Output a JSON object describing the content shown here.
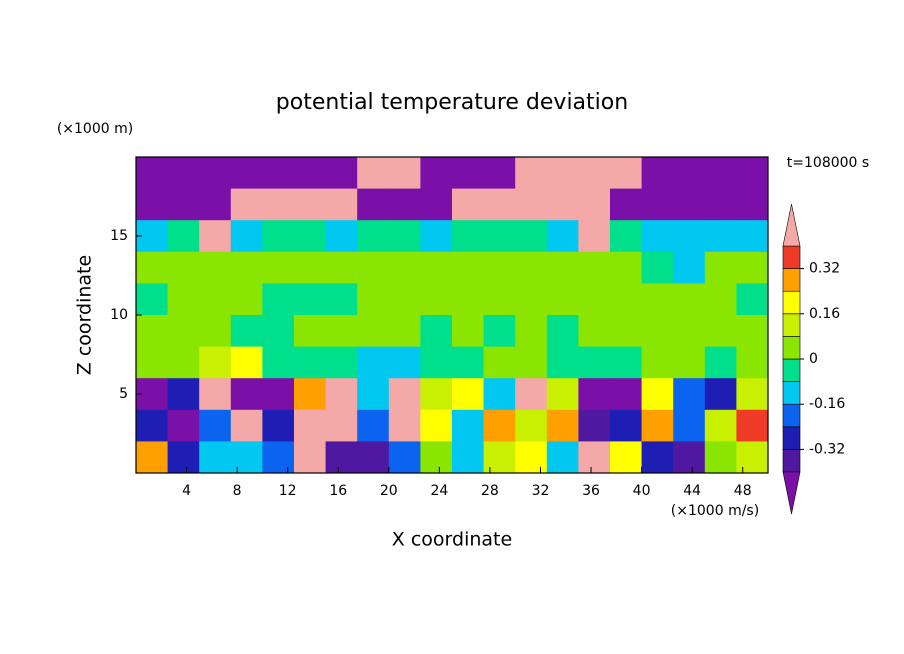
{
  "chart_data": {
    "type": "filled-contour",
    "title": "potential temperature deviation",
    "y_unit": "(×1000 m)",
    "x_unit": "(×1000 m/s)",
    "time_label": "t=108000 s",
    "xlabel": "X coordinate",
    "ylabel": "Z coordinate",
    "xlim": [
      0,
      50
    ],
    "ylim": [
      0,
      20
    ],
    "xticks": [
      4,
      8,
      12,
      16,
      20,
      24,
      28,
      32,
      36,
      40,
      44,
      48
    ],
    "yticks": [
      5,
      10,
      15
    ],
    "levels": [
      -0.4,
      -0.32,
      -0.24,
      -0.16,
      -0.08,
      0,
      0.08,
      0.16,
      0.24,
      0.32,
      0.4
    ],
    "colors": [
      "#7a10a8",
      "#5018a0",
      "#1e1eb4",
      "#0a64f0",
      "#00c8f0",
      "#00e08c",
      "#8ae600",
      "#c8f000",
      "#ffff00",
      "#ffa000",
      "#f03a28",
      "#f4a8a8"
    ],
    "cbarticks": [
      -0.32,
      -0.16,
      0,
      0.16,
      0.32
    ],
    "x": [
      1.25,
      3.75,
      6.25,
      8.75,
      11.25,
      13.75,
      16.25,
      18.75,
      21.25,
      23.75,
      26.25,
      28.75,
      31.25,
      33.75,
      36.25,
      38.75,
      41.25,
      43.75,
      46.25,
      48.75
    ],
    "y": [
      19,
      17,
      15,
      13,
      11,
      9,
      7,
      5,
      3,
      1
    ],
    "z": [
      [
        -0.5,
        -0.5,
        -0.5,
        -0.5,
        -0.5,
        -0.5,
        -0.5,
        0.5,
        0.5,
        -0.5,
        -0.5,
        -0.5,
        0.5,
        0.5,
        0.5,
        0.5,
        -0.5,
        -0.5,
        -0.5,
        -0.5
      ],
      [
        -0.5,
        -0.5,
        -0.5,
        0.5,
        0.5,
        0.5,
        0.5,
        -0.5,
        -0.5,
        -0.5,
        0.5,
        0.5,
        0.5,
        0.5,
        0.5,
        -0.5,
        -0.5,
        -0.5,
        -0.5,
        -0.5
      ],
      [
        -0.1,
        -0.05,
        0.5,
        -0.1,
        -0.05,
        -0.05,
        -0.1,
        -0.05,
        -0.05,
        -0.1,
        -0.05,
        -0.05,
        -0.05,
        -0.1,
        0.5,
        -0.05,
        -0.1,
        -0.1,
        -0.15,
        -0.1
      ],
      [
        0.05,
        0.05,
        0.05,
        0.05,
        0.05,
        0.05,
        0.05,
        0.05,
        0.05,
        0.05,
        0.05,
        0.05,
        0.05,
        0.05,
        0.05,
        0.05,
        -0.03,
        -0.1,
        0.05,
        0.05
      ],
      [
        -0.03,
        0.05,
        0.05,
        0.05,
        -0.03,
        -0.03,
        -0.03,
        0.05,
        0.05,
        0.05,
        0.05,
        0.05,
        0.05,
        0.05,
        0.05,
        0.05,
        0.05,
        0.05,
        0.05,
        -0.03
      ],
      [
        0.05,
        0.05,
        0.05,
        -0.03,
        -0.03,
        0.05,
        0.05,
        0.05,
        0.05,
        -0.03,
        0.05,
        -0.03,
        0.05,
        -0.03,
        0.05,
        0.05,
        0.05,
        0.05,
        0.05,
        0.05
      ],
      [
        0.05,
        0.05,
        0.12,
        0.2,
        -0.03,
        -0.03,
        -0.03,
        -0.1,
        -0.1,
        -0.03,
        -0.03,
        0.05,
        0.05,
        -0.03,
        -0.03,
        -0.03,
        0.05,
        0.05,
        -0.03,
        0.05
      ],
      [
        -0.5,
        -0.3,
        0.5,
        -0.45,
        -0.45,
        0.3,
        0.5,
        -0.1,
        0.5,
        0.1,
        0.2,
        -0.1,
        0.5,
        0.1,
        -0.45,
        -0.45,
        0.2,
        -0.2,
        -0.3,
        0.1
      ],
      [
        -0.3,
        -0.45,
        -0.2,
        0.4,
        -0.3,
        0.5,
        0.5,
        -0.2,
        0.5,
        0.2,
        -0.1,
        0.3,
        0.1,
        0.3,
        -0.35,
        -0.3,
        0.3,
        -0.2,
        0.1,
        0.35
      ],
      [
        0.3,
        -0.3,
        -0.15,
        -0.1,
        -0.2,
        0.5,
        -0.35,
        -0.4,
        -0.2,
        0.05,
        -0.1,
        0.1,
        0.2,
        -0.15,
        0.4,
        0.2,
        -0.3,
        -0.4,
        0.05,
        0.1
      ]
    ]
  }
}
